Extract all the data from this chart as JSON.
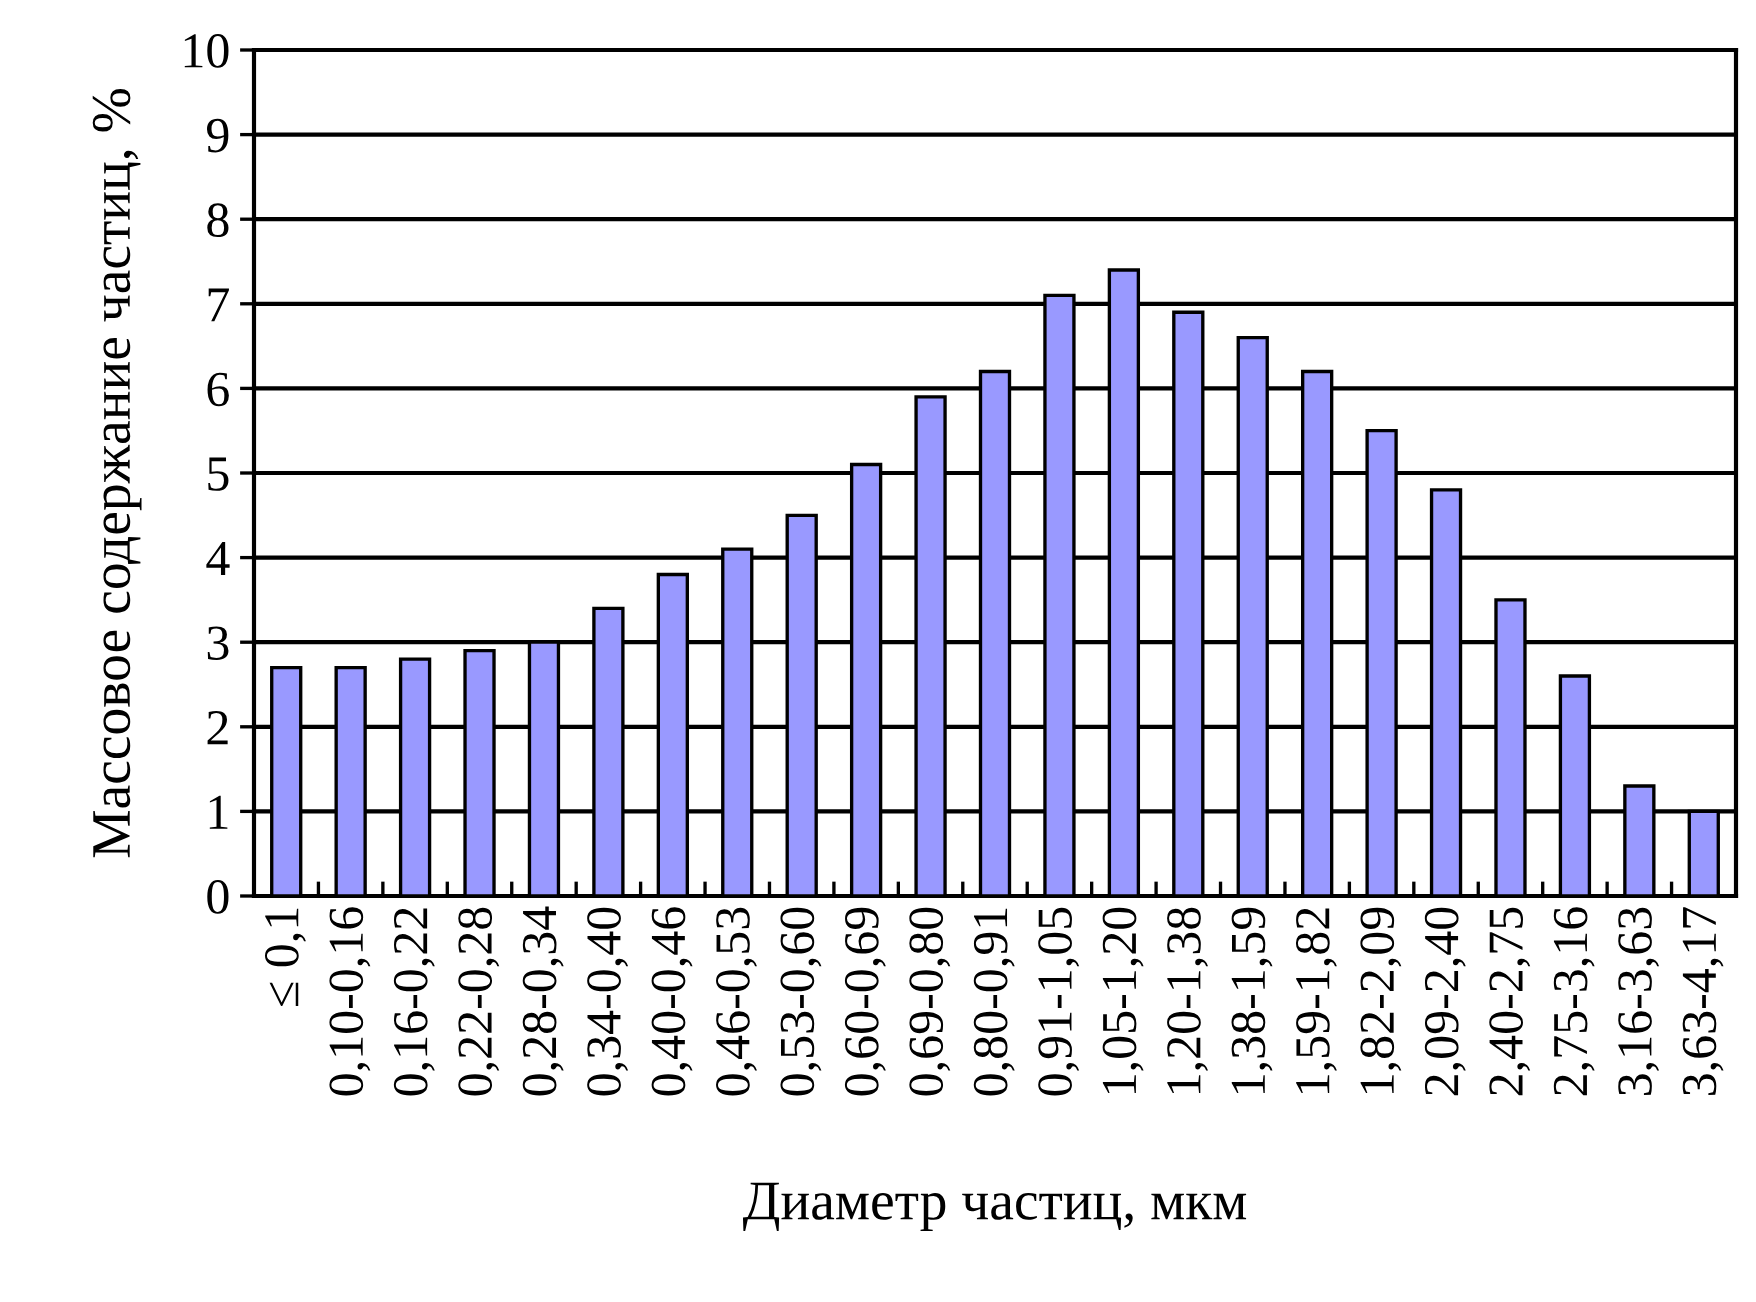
{
  "chart_data": {
    "type": "bar",
    "xlabel": "Диаметр частиц, мкм",
    "ylabel": "Массовое содержание частиц, %",
    "categories": [
      "≤ 0,1",
      "0,10-0,16",
      "0,16-0,22",
      "0,22-0,28",
      "0,28-0,34",
      "0,34-0,40",
      "0,40-0,46",
      "0,46-0,53",
      "0,53-0,60",
      "0,60-0,69",
      "0,69-0,80",
      "0,80-0,91",
      "0,91-1,05",
      "1,05-1,20",
      "1,20-1,38",
      "1,38-1,59",
      "1,59-1,82",
      "1,82-2,09",
      "2,09-2,40",
      "2,40-2,75",
      "2,75-3,16",
      "3,16-3,63",
      "3,63-4,17"
    ],
    "values": [
      2.7,
      2.7,
      2.8,
      2.9,
      3.0,
      3.4,
      3.8,
      4.1,
      4.5,
      5.1,
      5.9,
      6.2,
      7.1,
      7.4,
      6.9,
      6.6,
      6.2,
      5.5,
      4.8,
      3.5,
      2.6,
      1.3,
      1.0
    ],
    "color": "#9999ff",
    "ylim": [
      0,
      10
    ],
    "yticks": [
      0,
      1,
      2,
      3,
      4,
      5,
      6,
      7,
      8,
      9,
      10
    ],
    "grid": "y"
  }
}
